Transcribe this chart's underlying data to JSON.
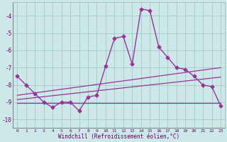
{
  "main_line_x": [
    0,
    1,
    2,
    3,
    4,
    5,
    6,
    7,
    8,
    9,
    10,
    11,
    12,
    13,
    14,
    15,
    16,
    17,
    18,
    19,
    20,
    21,
    22,
    23
  ],
  "main_line_y": [
    -7.5,
    -8.0,
    -8.5,
    -9.0,
    -9.3,
    -9.0,
    -9.0,
    -9.5,
    -8.7,
    -8.6,
    -6.9,
    -5.3,
    -5.2,
    -6.8,
    -3.6,
    -3.7,
    -5.8,
    -6.4,
    -7.0,
    -7.1,
    -7.5,
    -8.0,
    -8.1,
    -9.2
  ],
  "trend_line1_x": [
    0,
    23
  ],
  "trend_line1_y": [
    -8.6,
    -7.0
  ],
  "trend_line2_x": [
    0,
    23
  ],
  "trend_line2_y": [
    -8.85,
    -7.55
  ],
  "flat_line_x": [
    0,
    23
  ],
  "flat_line_y": [
    -9.05,
    -9.05
  ],
  "line_color": "#993399",
  "bg_color": "#cce8e8",
  "grid_color": "#aacccc",
  "xlabel": "Windchill (Refroidissement éolien,°C)",
  "xlim": [
    -0.5,
    23.5
  ],
  "ylim": [
    -10.5,
    -3.2
  ],
  "yticks": [
    -10,
    -9,
    -8,
    -7,
    -6,
    -5,
    -4
  ],
  "xticks": [
    0,
    1,
    2,
    3,
    4,
    5,
    6,
    7,
    8,
    9,
    10,
    11,
    12,
    13,
    14,
    15,
    16,
    17,
    18,
    19,
    20,
    21,
    22,
    23
  ]
}
